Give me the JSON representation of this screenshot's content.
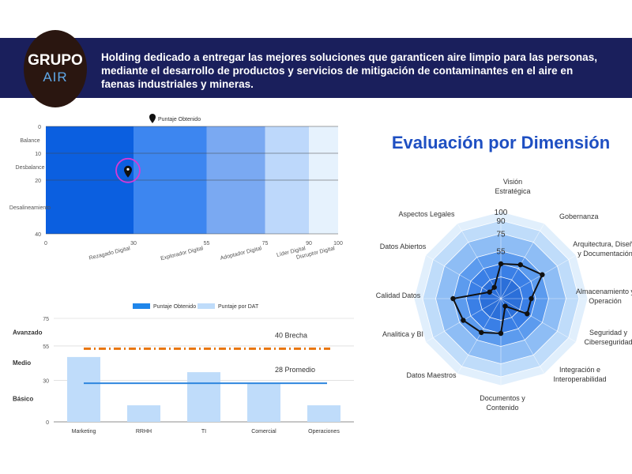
{
  "header": {
    "logo_top": "GRUPO",
    "logo_bottom": "AIR",
    "description": "Holding dedicado a entregar las mejores soluciones que garanticen aire limpio para las personas, mediante el desarrollo de productos y servicios de mitigación de contaminantes en el aire en faenas industriales y mineras."
  },
  "colors": {
    "banner": "#1a1f5c",
    "band_colors": [
      "#0b5fe0",
      "#3d86f0",
      "#7aa9f2",
      "#bdd8fb",
      "#e6f2fd"
    ],
    "bar": "#bfdcfa",
    "promedio": "#2e86de",
    "brecha": "#e8740c",
    "radar_line": "#111111",
    "radar_title": "#1e4fc2"
  },
  "chart_data": [
    {
      "type": "bar",
      "title": "",
      "legend": [
        "Puntaje Obtenido"
      ],
      "x_ticks": [
        0,
        30,
        55,
        75,
        90,
        100
      ],
      "xlim": [
        0,
        100
      ],
      "bands": [
        {
          "label": "Rezagado Digital",
          "from": 0,
          "to": 30
        },
        {
          "label": "Explorador Digital",
          "from": 30,
          "to": 55
        },
        {
          "label": "Adoptador Digital",
          "from": 55,
          "to": 75
        },
        {
          "label": "Líder Digital",
          "from": 75,
          "to": 90
        },
        {
          "label": "Disruptor Digital",
          "from": 90,
          "to": 100
        }
      ],
      "y_ticks": [
        0,
        10,
        20,
        40
      ],
      "ylim": [
        0,
        40
      ],
      "y_categories": [
        {
          "label": "Balance",
          "y": 5
        },
        {
          "label": "Desbalance",
          "y": 15
        },
        {
          "label": "Desalineamiento",
          "y": 30
        }
      ],
      "point": {
        "x": 30,
        "y": 17
      }
    },
    {
      "type": "bar",
      "legend": [
        "Puntaje Obtenido",
        "Puntaje por DAT"
      ],
      "categories": [
        "Marketing",
        "RRHH",
        "TI",
        "Comercial",
        "Operaciones"
      ],
      "values": [
        47,
        12,
        36,
        28,
        12
      ],
      "y_ticks": [
        0,
        30,
        55,
        75
      ],
      "ylim": [
        0,
        75
      ],
      "levels": [
        {
          "label": "Avanzado",
          "y": 65
        },
        {
          "label": "Medio",
          "y": 43
        },
        {
          "label": "Básico",
          "y": 17
        }
      ],
      "brecha": {
        "label": "40 Brecha",
        "value": 53
      },
      "promedio": {
        "label": "28 Promedio",
        "value": 28
      }
    },
    {
      "type": "radar",
      "title": "Evaluación por Dimensión",
      "r_ticks": [
        55,
        75,
        90,
        100
      ],
      "rlim": [
        0,
        100
      ],
      "axes": [
        "Visión Estratégica",
        "Gobernanza",
        "Arquitectura, Diseño y Documentación",
        "Almacenamiento y Operación",
        "Seguridad y Ciberseguridad",
        "Integración e Interoperabilidad",
        "Documentos y Contenido",
        "Datos Maestros",
        "Analitica y BI",
        "Calidad Datos",
        "Datos Abiertos",
        "Aspectos Legales"
      ],
      "values": [
        40,
        45,
        55,
        35,
        35,
        10,
        40,
        45,
        50,
        55,
        15,
        15
      ]
    }
  ]
}
